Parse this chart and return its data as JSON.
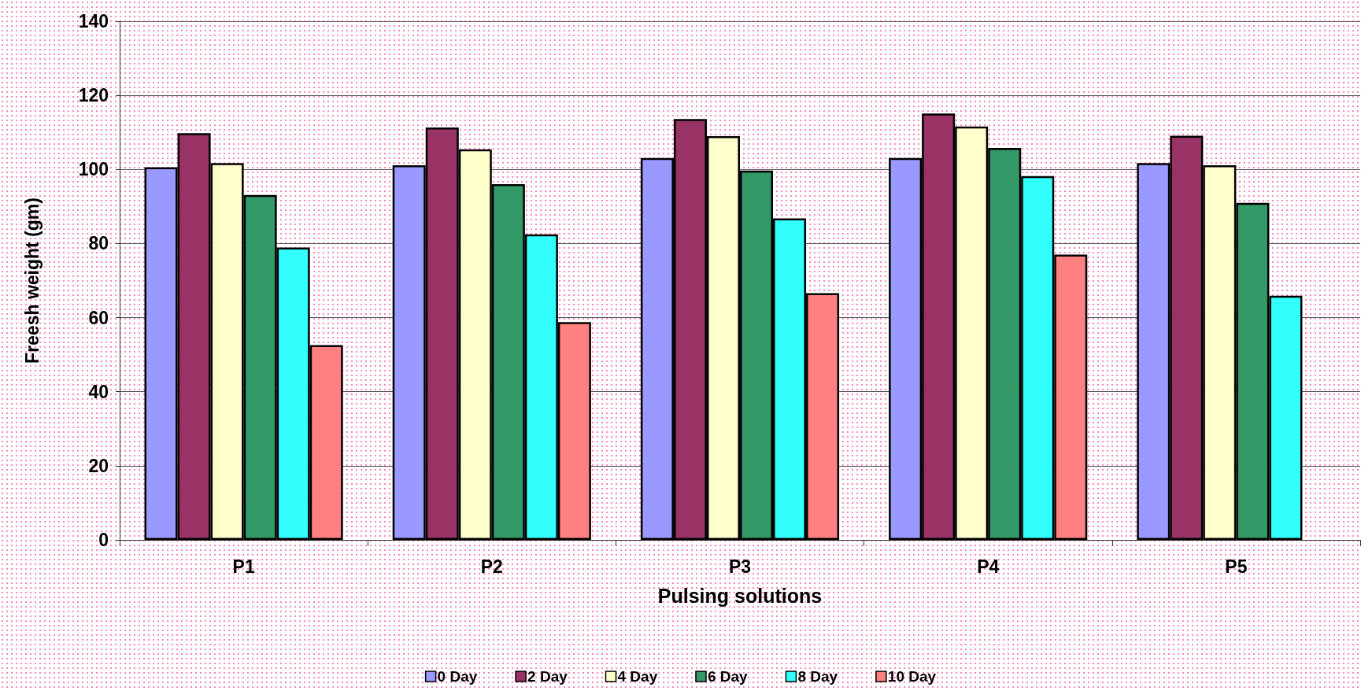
{
  "chart_data": {
    "type": "bar",
    "xlabel": "Pulsing solutions",
    "ylabel": "Freesh weight (gm)",
    "categories": [
      "P1",
      "P2",
      "P3",
      "P4",
      "P5"
    ],
    "series": [
      {
        "name": "0 Day",
        "color": "#9999ff",
        "values": [
          100.6,
          101.1,
          103.1,
          103.1,
          101.7
        ]
      },
      {
        "name": "2 Day",
        "color": "#993366",
        "values": [
          109.8,
          111.3,
          113.6,
          115.1,
          109.1
        ]
      },
      {
        "name": "4 Day",
        "color": "#ffffcc",
        "values": [
          101.7,
          105.4,
          109.0,
          111.6,
          101.1
        ]
      },
      {
        "name": "6 Day",
        "color": "#339966",
        "values": [
          93.1,
          96.0,
          99.7,
          105.8,
          91.0
        ]
      },
      {
        "name": "8 Day",
        "color": "#33ffff",
        "values": [
          78.9,
          82.5,
          86.8,
          98.2,
          65.9
        ]
      },
      {
        "name": "10 Day",
        "color": "#ff8080",
        "values": [
          52.6,
          58.8,
          66.6,
          77.0,
          null
        ]
      }
    ],
    "ylim": [
      0,
      140
    ],
    "yticks": [
      0,
      20,
      40,
      60,
      80,
      100,
      120,
      140
    ],
    "grid": "y",
    "legend": "bottom"
  }
}
